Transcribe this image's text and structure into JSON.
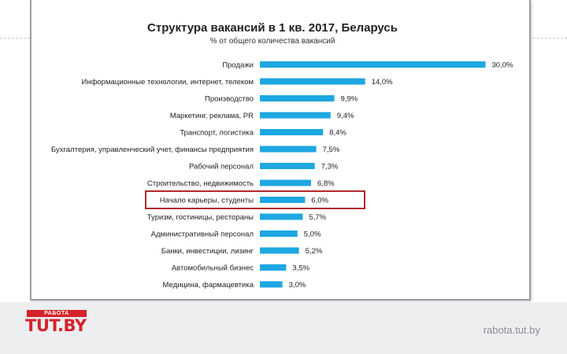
{
  "chart_data": {
    "type": "bar",
    "orientation": "horizontal",
    "title": "Структура вакансий в 1 кв. 2017, Беларусь",
    "subtitle": "% от общего количества вакансий",
    "categories": [
      "Продажи",
      "Информационные технологии, интернет, телеком",
      "Производство",
      "Маркетинг, реклама, PR",
      "Транспорт, логистика",
      "Бухгалтерия, управленческий учет, финансы предприятия",
      "Рабочий персонал",
      "Строительство, недвижимость",
      "Начало карьеры, студенты",
      "Туризм, гостиницы, рестораны",
      "Административный персонал",
      "Банки, инвестиции, лизинг",
      "Автомобильный бизнес",
      "Медицина, фармацевтика"
    ],
    "values": [
      30.0,
      14.0,
      9.9,
      9.4,
      8.4,
      7.5,
      7.3,
      6.8,
      6.0,
      5.7,
      5.0,
      5.2,
      3.5,
      3.0
    ],
    "value_labels": [
      "30,0%",
      "14,0%",
      "9,9%",
      "9,4%",
      "8,4%",
      "7,5%",
      "7,3%",
      "6,8%",
      "6,0%",
      "5,7%",
      "5,0%",
      "5,2%",
      "3,5%",
      "3,0%"
    ],
    "highlighted_index": 8,
    "bar_color": "#1ea7e1",
    "highlight_color": "#b22a2a",
    "grid": false,
    "legend": "none"
  },
  "footer": {
    "logo_top": "РАБОТА",
    "logo_main": "TUT.BY",
    "site": "rabota.tut.by"
  }
}
